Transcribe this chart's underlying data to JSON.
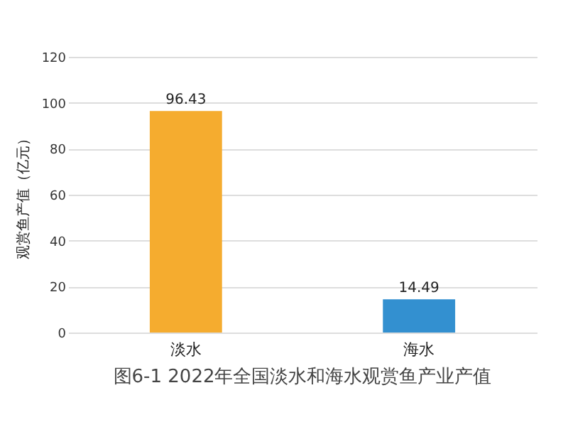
{
  "chart_data": {
    "type": "bar",
    "title": "图6-1 2022年全国淡水和海水观赏鱼产业产值",
    "ylabel": "观赏鱼产值（亿元）",
    "categories": [
      "淡水",
      "海水"
    ],
    "values": [
      96.43,
      14.49
    ],
    "colors": [
      "#f5ac2f",
      "#3390d0"
    ],
    "ylim": [
      0,
      120
    ],
    "yticks": [
      0,
      20,
      40,
      60,
      80,
      100,
      120
    ],
    "grid": "y",
    "data_labels": true
  }
}
